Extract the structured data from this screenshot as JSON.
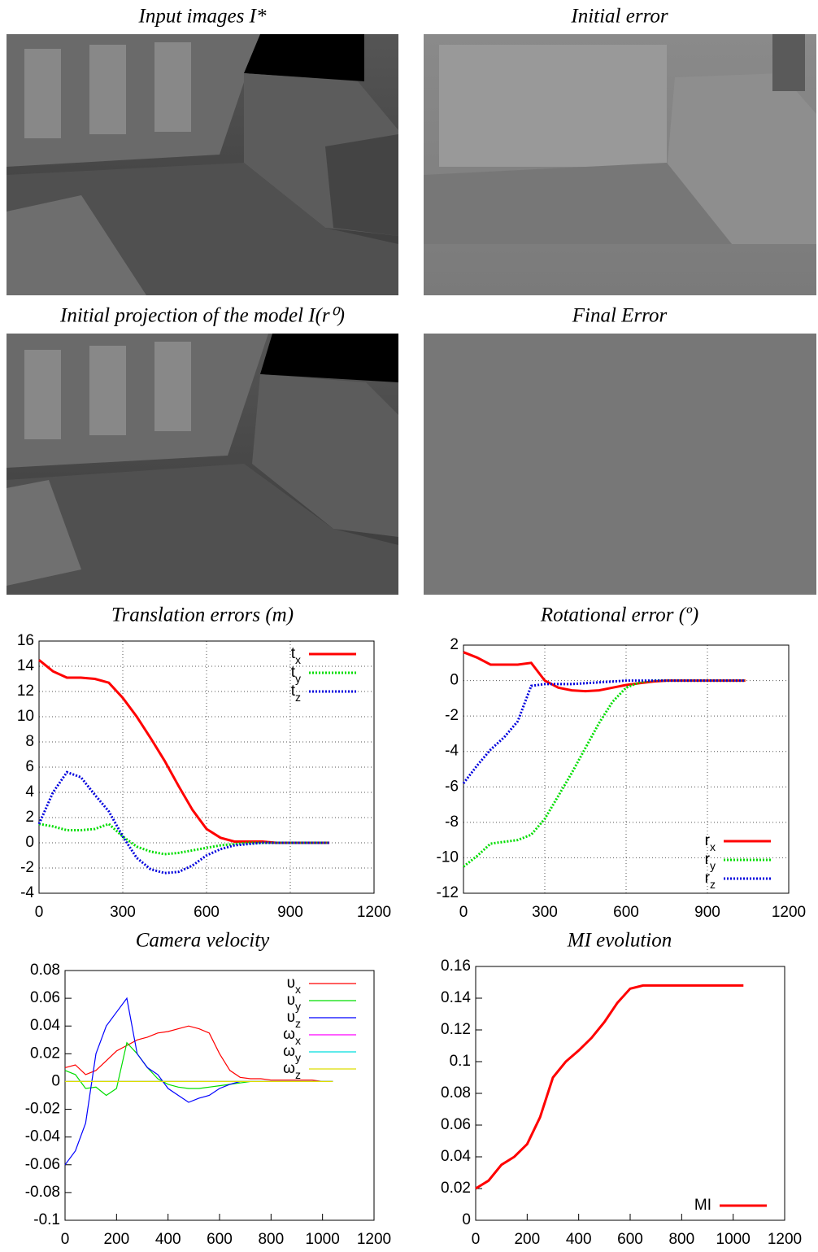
{
  "images": [
    {
      "title": "Input images I*"
    },
    {
      "title": "Initial error"
    },
    {
      "title": "Initial projection of the model I(r⁰)"
    },
    {
      "title": "Final Error"
    }
  ],
  "chart_data": [
    {
      "type": "line",
      "title": "Translation errors (m)",
      "x": [
        0,
        50,
        100,
        150,
        200,
        250,
        300,
        350,
        400,
        450,
        500,
        550,
        600,
        650,
        700,
        750,
        800,
        850,
        900,
        950,
        1000,
        1040
      ],
      "series": [
        {
          "name": "tx",
          "color": "#ff0000",
          "dash": "solid",
          "values": [
            14.5,
            13.6,
            13.1,
            13.1,
            13.0,
            12.7,
            11.5,
            10.0,
            8.3,
            6.5,
            4.5,
            2.6,
            1.1,
            0.4,
            0.1,
            0.1,
            0.1,
            0,
            0,
            0,
            0,
            0
          ]
        },
        {
          "name": "ty",
          "color": "#00dd00",
          "dash": "dotted",
          "values": [
            1.5,
            1.3,
            1.0,
            1.0,
            1.1,
            1.5,
            0.5,
            -0.3,
            -0.7,
            -0.9,
            -0.8,
            -0.6,
            -0.4,
            -0.2,
            -0.1,
            0,
            0,
            0,
            0,
            0,
            0,
            0
          ]
        },
        {
          "name": "tz",
          "color": "#0000dd",
          "dash": "dotted",
          "values": [
            1.5,
            4.0,
            5.6,
            5.2,
            3.8,
            2.5,
            0.5,
            -1.2,
            -2.1,
            -2.4,
            -2.3,
            -1.8,
            -1.0,
            -0.5,
            -0.2,
            -0.1,
            0,
            0,
            0,
            0,
            0,
            0
          ]
        }
      ],
      "xlim": [
        0,
        1200
      ],
      "xticks": [
        0,
        300,
        600,
        900,
        1200
      ],
      "ylim": [
        -4,
        16
      ],
      "yticks": [
        -4,
        -2,
        0,
        2,
        4,
        6,
        8,
        10,
        12,
        14,
        16
      ],
      "grid": true,
      "legend": "upper right"
    },
    {
      "type": "line",
      "title": "Rotational error (º)",
      "x": [
        0,
        50,
        100,
        150,
        200,
        250,
        300,
        350,
        400,
        450,
        500,
        550,
        600,
        650,
        700,
        750,
        800,
        850,
        900,
        950,
        1000,
        1040
      ],
      "series": [
        {
          "name": "rx",
          "color": "#ff0000",
          "dash": "solid",
          "values": [
            1.6,
            1.3,
            0.9,
            0.9,
            0.9,
            1.0,
            0.0,
            -0.4,
            -0.55,
            -0.6,
            -0.55,
            -0.4,
            -0.25,
            -0.15,
            -0.05,
            0,
            0,
            0,
            0,
            0,
            0,
            0
          ]
        },
        {
          "name": "ry",
          "color": "#00dd00",
          "dash": "dotted",
          "values": [
            -10.5,
            -9.9,
            -9.2,
            -9.1,
            -9.0,
            -8.7,
            -7.8,
            -6.5,
            -5.2,
            -3.8,
            -2.4,
            -1.2,
            -0.4,
            -0.1,
            0,
            0,
            0,
            0,
            0,
            0,
            0,
            0
          ]
        },
        {
          "name": "rz",
          "color": "#0000dd",
          "dash": "dotted",
          "values": [
            -5.8,
            -4.8,
            -3.9,
            -3.2,
            -2.3,
            -0.3,
            -0.2,
            -0.2,
            -0.2,
            -0.15,
            -0.1,
            -0.05,
            0,
            0,
            0,
            0,
            0,
            0,
            0,
            0,
            0,
            0
          ]
        }
      ],
      "xlim": [
        0,
        1200
      ],
      "xticks": [
        0,
        300,
        600,
        900,
        1200
      ],
      "ylim": [
        -12,
        2
      ],
      "yticks": [
        -12,
        -10,
        -8,
        -6,
        -4,
        -2,
        0,
        2
      ],
      "grid": true,
      "legend": "lower right"
    },
    {
      "type": "line",
      "title": "Camera velocity",
      "x": [
        0,
        40,
        80,
        120,
        160,
        200,
        240,
        280,
        320,
        360,
        400,
        440,
        480,
        520,
        560,
        600,
        640,
        680,
        720,
        760,
        800,
        840,
        880,
        920,
        960,
        1000,
        1040
      ],
      "series": [
        {
          "name": "υx",
          "color": "#ff0000",
          "dash": "solid",
          "values": [
            0.01,
            0.012,
            0.005,
            0.008,
            0.015,
            0.022,
            0.026,
            0.03,
            0.032,
            0.035,
            0.036,
            0.038,
            0.04,
            0.038,
            0.035,
            0.02,
            0.008,
            0.003,
            0.002,
            0.002,
            0.001,
            0.001,
            0.001,
            0.001,
            0.001,
            0,
            0
          ]
        },
        {
          "name": "υy",
          "color": "#00dd00",
          "dash": "solid",
          "values": [
            0.008,
            0.005,
            -0.005,
            -0.004,
            -0.01,
            -0.005,
            0.028,
            0.02,
            0.01,
            0.002,
            -0.002,
            -0.004,
            -0.005,
            -0.005,
            -0.004,
            -0.003,
            -0.002,
            -0.001,
            0,
            0,
            0,
            0,
            0,
            0,
            0,
            0,
            0
          ]
        },
        {
          "name": "υz",
          "color": "#0000ff",
          "dash": "solid",
          "values": [
            -0.06,
            -0.05,
            -0.03,
            0.02,
            0.04,
            0.05,
            0.06,
            0.02,
            0.01,
            0.005,
            -0.005,
            -0.01,
            -0.015,
            -0.012,
            -0.01,
            -0.005,
            -0.002,
            0,
            0,
            0,
            0,
            0,
            0,
            0,
            0,
            0,
            0
          ]
        },
        {
          "name": "ωx",
          "color": "#ff00ff",
          "dash": "solid",
          "values": [
            0,
            0,
            0,
            0,
            0,
            0,
            0,
            0,
            0,
            0,
            0,
            0,
            0,
            0,
            0,
            0,
            0,
            0,
            0,
            0,
            0,
            0,
            0,
            0,
            0,
            0,
            0
          ]
        },
        {
          "name": "ωy",
          "color": "#00dddd",
          "dash": "solid",
          "values": [
            0,
            0,
            0,
            0,
            0,
            0,
            0,
            0,
            0,
            0,
            0,
            0,
            0,
            0,
            0,
            0,
            0,
            0,
            0,
            0,
            0,
            0,
            0,
            0,
            0,
            0,
            0
          ]
        },
        {
          "name": "ωz",
          "color": "#dddd00",
          "dash": "solid",
          "values": [
            0,
            0,
            0,
            0,
            0,
            0,
            0,
            0,
            0,
            0,
            0,
            0,
            0,
            0,
            0,
            0,
            0,
            0,
            0,
            0,
            0,
            0,
            0,
            0,
            0,
            0,
            0
          ]
        }
      ],
      "xlim": [
        0,
        1200
      ],
      "xticks": [
        0,
        200,
        400,
        600,
        800,
        1000,
        1200
      ],
      "ylim": [
        -0.1,
        0.08
      ],
      "yticks": [
        -0.1,
        -0.08,
        -0.06,
        -0.04,
        -0.02,
        0,
        0.02,
        0.04,
        0.06,
        0.08
      ],
      "grid": false,
      "legend": "upper right"
    },
    {
      "type": "line",
      "title": "MI evolution",
      "x": [
        0,
        50,
        100,
        150,
        200,
        250,
        300,
        350,
        400,
        450,
        500,
        550,
        600,
        650,
        700,
        750,
        800,
        850,
        900,
        950,
        1000,
        1040
      ],
      "series": [
        {
          "name": "MI",
          "color": "#ff0000",
          "dash": "solid",
          "values": [
            0.02,
            0.025,
            0.035,
            0.04,
            0.048,
            0.065,
            0.09,
            0.1,
            0.107,
            0.115,
            0.125,
            0.137,
            0.146,
            0.148,
            0.148,
            0.148,
            0.148,
            0.148,
            0.148,
            0.148,
            0.148,
            0.148
          ]
        }
      ],
      "xlim": [
        0,
        1200
      ],
      "xticks": [
        0,
        200,
        400,
        600,
        800,
        1000,
        1200
      ],
      "ylim": [
        0,
        0.16
      ],
      "yticks": [
        0,
        0.02,
        0.04,
        0.06,
        0.08,
        0.1,
        0.12,
        0.14,
        0.16
      ],
      "grid": false,
      "legend": "lower right"
    }
  ]
}
